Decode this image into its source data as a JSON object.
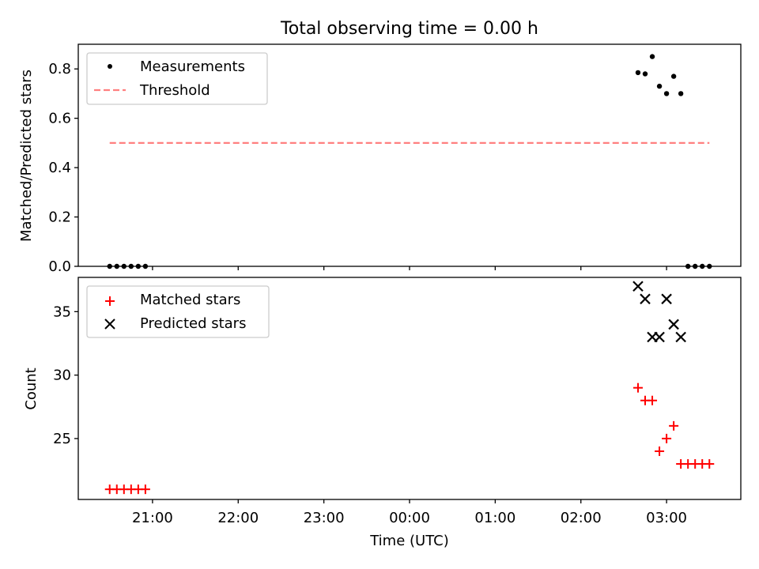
{
  "figure": {
    "title": "Total observing time = 0.00 h"
  },
  "chart_data": [
    {
      "type": "scatter",
      "title": "Total observing time = 0.00 h",
      "xlabel": "",
      "ylabel": "Matched/Predicted stars",
      "x_axis": "time (UTC), shared with lower panel",
      "ylim": [
        0,
        0.9
      ],
      "yticks": [
        "0.0",
        "0.2",
        "0.4",
        "0.6",
        "0.8"
      ],
      "grid": false,
      "legend_position": "upper-left",
      "series": [
        {
          "name": "Measurements",
          "style": "dot",
          "color": "#000000",
          "points": [
            {
              "x": "20:30",
              "y": 0.0
            },
            {
              "x": "20:35",
              "y": 0.0
            },
            {
              "x": "20:40",
              "y": 0.0
            },
            {
              "x": "20:45",
              "y": 0.0
            },
            {
              "x": "20:50",
              "y": 0.0
            },
            {
              "x": "20:55",
              "y": 0.0
            },
            {
              "x": "02:40",
              "y": 0.785
            },
            {
              "x": "02:45",
              "y": 0.78
            },
            {
              "x": "02:50",
              "y": 0.85
            },
            {
              "x": "02:55",
              "y": 0.73
            },
            {
              "x": "03:00",
              "y": 0.7
            },
            {
              "x": "03:05",
              "y": 0.77
            },
            {
              "x": "03:10",
              "y": 0.7
            },
            {
              "x": "03:15",
              "y": 0.0
            },
            {
              "x": "03:20",
              "y": 0.0
            },
            {
              "x": "03:25",
              "y": 0.0
            },
            {
              "x": "03:30",
              "y": 0.0
            }
          ]
        },
        {
          "name": "Threshold",
          "style": "dashed-line",
          "color": "#ff7f7f",
          "points": [
            {
              "x": "20:30",
              "y": 0.5
            },
            {
              "x": "03:30",
              "y": 0.5
            }
          ]
        }
      ]
    },
    {
      "type": "scatter",
      "title": "",
      "xlabel": "Time (UTC)",
      "ylabel": "Count",
      "ylim": [
        20.2,
        37.7
      ],
      "yticks": [
        "25",
        "30",
        "35"
      ],
      "xlim": [
        "20:08",
        "03:52"
      ],
      "xticks": [
        "21:00",
        "22:00",
        "23:00",
        "00:00",
        "01:00",
        "02:00",
        "03:00"
      ],
      "grid": false,
      "legend_position": "upper-left",
      "series": [
        {
          "name": "Matched stars",
          "style": "plus",
          "color": "#ff0000",
          "points": [
            {
              "x": "20:30",
              "y": 21
            },
            {
              "x": "20:35",
              "y": 21
            },
            {
              "x": "20:40",
              "y": 21
            },
            {
              "x": "20:45",
              "y": 21
            },
            {
              "x": "20:50",
              "y": 21
            },
            {
              "x": "20:55",
              "y": 21
            },
            {
              "x": "02:40",
              "y": 29
            },
            {
              "x": "02:45",
              "y": 28
            },
            {
              "x": "02:50",
              "y": 28
            },
            {
              "x": "02:55",
              "y": 24
            },
            {
              "x": "03:00",
              "y": 25
            },
            {
              "x": "03:05",
              "y": 26
            },
            {
              "x": "03:10",
              "y": 23
            },
            {
              "x": "03:15",
              "y": 23
            },
            {
              "x": "03:20",
              "y": 23
            },
            {
              "x": "03:25",
              "y": 23
            },
            {
              "x": "03:30",
              "y": 23
            }
          ]
        },
        {
          "name": "Predicted stars",
          "style": "x",
          "color": "#000000",
          "points": [
            {
              "x": "02:40",
              "y": 37
            },
            {
              "x": "02:45",
              "y": 36
            },
            {
              "x": "02:50",
              "y": 33
            },
            {
              "x": "02:55",
              "y": 33
            },
            {
              "x": "03:00",
              "y": 36
            },
            {
              "x": "03:05",
              "y": 34
            },
            {
              "x": "03:10",
              "y": 33
            }
          ]
        }
      ]
    }
  ]
}
